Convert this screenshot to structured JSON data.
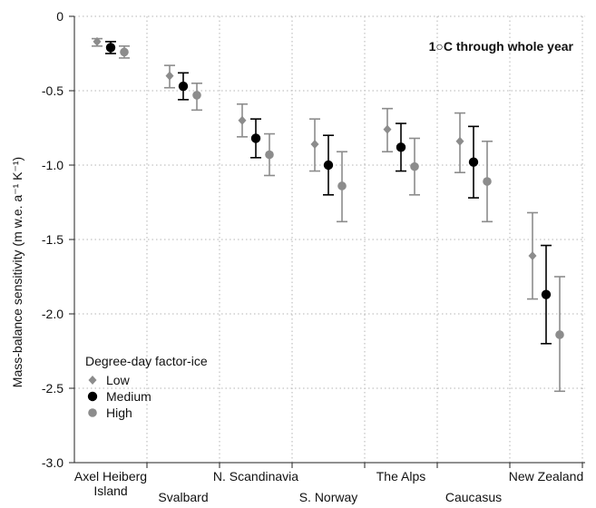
{
  "chart_data": {
    "type": "scatter",
    "title": "",
    "annotation": "1○C through whole year",
    "ylabel": "Mass-balance sensitivity (m w.e. a⁻¹ K⁻¹)",
    "xlabel": "",
    "ylim": [
      -3.0,
      0
    ],
    "yticks": [
      0,
      -0.5,
      -1.0,
      -1.5,
      -2.0,
      -2.5,
      -3.0
    ],
    "ytick_labels": [
      "0",
      "-0.5",
      "-1.0",
      "-1.5",
      "-2.0",
      "-2.5",
      "-3.0"
    ],
    "grid": "dotted",
    "categories": [
      {
        "label_lines": [
          "Axel Heiberg",
          "Island"
        ],
        "row": 1
      },
      {
        "label_lines": [
          "Svalbard"
        ],
        "row": 2
      },
      {
        "label_lines": [
          "N. Scandinavia"
        ],
        "row": 1
      },
      {
        "label_lines": [
          "S. Norway"
        ],
        "row": 2
      },
      {
        "label_lines": [
          "The Alps"
        ],
        "row": 1
      },
      {
        "label_lines": [
          "Caucasus"
        ],
        "row": 2
      },
      {
        "label_lines": [
          "New Zealand"
        ],
        "row": 1
      }
    ],
    "legend": {
      "title": "Degree-day factor-ice",
      "position": "bottom-left",
      "entries": [
        "Low",
        "Medium",
        "High"
      ]
    },
    "series": [
      {
        "name": "Low",
        "color": "#8c8c8c",
        "marker": "diamond",
        "values": [
          -0.17,
          -0.4,
          -0.7,
          -0.86,
          -0.76,
          -0.84,
          -1.61
        ],
        "err_low": [
          -0.2,
          -0.48,
          -0.81,
          -1.04,
          -0.91,
          -1.05,
          -1.9
        ],
        "err_high": [
          -0.15,
          -0.33,
          -0.59,
          -0.69,
          -0.62,
          -0.65,
          -1.32
        ]
      },
      {
        "name": "Medium",
        "color": "#000000",
        "marker": "circle",
        "values": [
          -0.21,
          -0.47,
          -0.82,
          -1.0,
          -0.88,
          -0.98,
          -1.87
        ],
        "err_low": [
          -0.25,
          -0.56,
          -0.95,
          -1.2,
          -1.04,
          -1.22,
          -2.2
        ],
        "err_high": [
          -0.17,
          -0.38,
          -0.69,
          -0.8,
          -0.72,
          -0.74,
          -1.54
        ]
      },
      {
        "name": "High",
        "color": "#8c8c8c",
        "marker": "circle",
        "values": [
          -0.24,
          -0.53,
          -0.93,
          -1.14,
          -1.01,
          -1.11,
          -2.14
        ],
        "err_low": [
          -0.28,
          -0.63,
          -1.07,
          -1.38,
          -1.2,
          -1.38,
          -2.52
        ],
        "err_high": [
          -0.2,
          -0.45,
          -0.79,
          -0.91,
          -0.82,
          -0.84,
          -1.75
        ]
      }
    ]
  }
}
